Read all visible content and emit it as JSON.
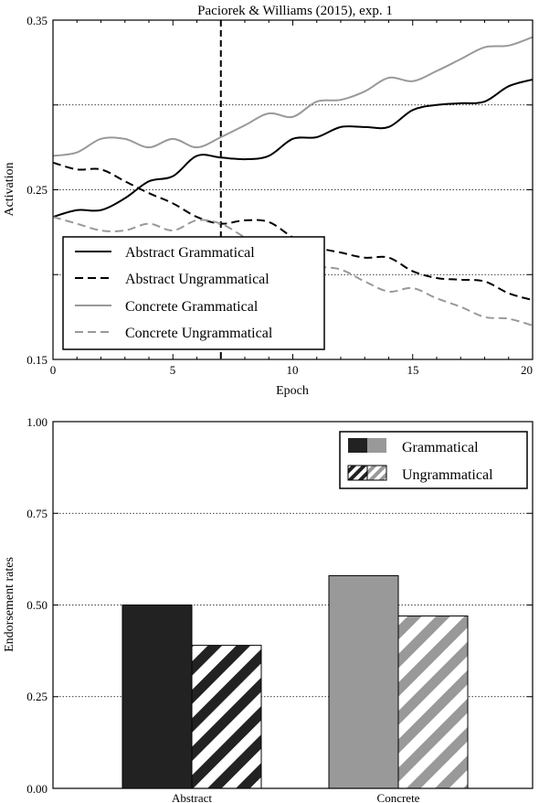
{
  "chart_data": [
    {
      "type": "line",
      "title": "Paciorek & Williams (2015), exp. 1",
      "xlabel": "Epoch",
      "ylabel": "Activation",
      "xlim": [
        0,
        20
      ],
      "ylim": [
        0.15,
        0.35
      ],
      "xticks": [
        "0",
        "5",
        "10",
        "15",
        "20"
      ],
      "yticks": [
        "0.15",
        "0.25",
        "0.35"
      ],
      "grid": "horizontal-dotted",
      "marker_x": 7,
      "legend_position": "bottom-left",
      "x": [
        0,
        1,
        2,
        3,
        4,
        5,
        6,
        7,
        8,
        9,
        10,
        11,
        12,
        13,
        14,
        15,
        16,
        17,
        18,
        19,
        20
      ],
      "series": [
        {
          "name": "Abstract Grammatical",
          "color": "#000000",
          "dash": "solid",
          "values": [
            0.234,
            0.238,
            0.238,
            0.245,
            0.255,
            0.258,
            0.27,
            0.269,
            0.268,
            0.27,
            0.28,
            0.281,
            0.287,
            0.287,
            0.287,
            0.297,
            0.3,
            0.301,
            0.302,
            0.311,
            0.315
          ]
        },
        {
          "name": "Abstract Ungrammatical",
          "color": "#000000",
          "dash": "dashed",
          "values": [
            0.266,
            0.262,
            0.262,
            0.255,
            0.248,
            0.242,
            0.234,
            0.23,
            0.232,
            0.231,
            0.222,
            0.216,
            0.213,
            0.21,
            0.21,
            0.202,
            0.198,
            0.197,
            0.196,
            0.189,
            0.185
          ]
        },
        {
          "name": "Concrete Grammatical",
          "color": "#999999",
          "dash": "solid",
          "values": [
            0.27,
            0.272,
            0.28,
            0.28,
            0.275,
            0.28,
            0.275,
            0.281,
            0.288,
            0.295,
            0.293,
            0.302,
            0.303,
            0.308,
            0.316,
            0.314,
            0.32,
            0.327,
            0.334,
            0.335,
            0.34
          ]
        },
        {
          "name": "Concrete Ungrammatical",
          "color": "#999999",
          "dash": "dashed",
          "values": [
            0.234,
            0.23,
            0.226,
            0.226,
            0.23,
            0.226,
            0.232,
            0.23,
            0.222,
            0.215,
            0.21,
            0.205,
            0.203,
            0.196,
            0.19,
            0.192,
            0.186,
            0.181,
            0.175,
            0.174,
            0.17
          ]
        }
      ]
    },
    {
      "type": "bar",
      "ylabel": "Endorsement rates",
      "ylim": [
        0,
        1
      ],
      "yticks": [
        "0.00",
        "0.25",
        "0.50",
        "0.75",
        "1.00"
      ],
      "grid": "horizontal-dotted",
      "legend_position": "top-right",
      "categories": [
        "Abstract",
        "Concrete"
      ],
      "category_colors": [
        "#222222",
        "#999999"
      ],
      "series": [
        {
          "name": "Grammatical",
          "pattern": "solid",
          "values": [
            0.5,
            0.58
          ]
        },
        {
          "name": "Ungrammatical",
          "pattern": "hatched",
          "values": [
            0.39,
            0.47
          ]
        }
      ]
    }
  ]
}
